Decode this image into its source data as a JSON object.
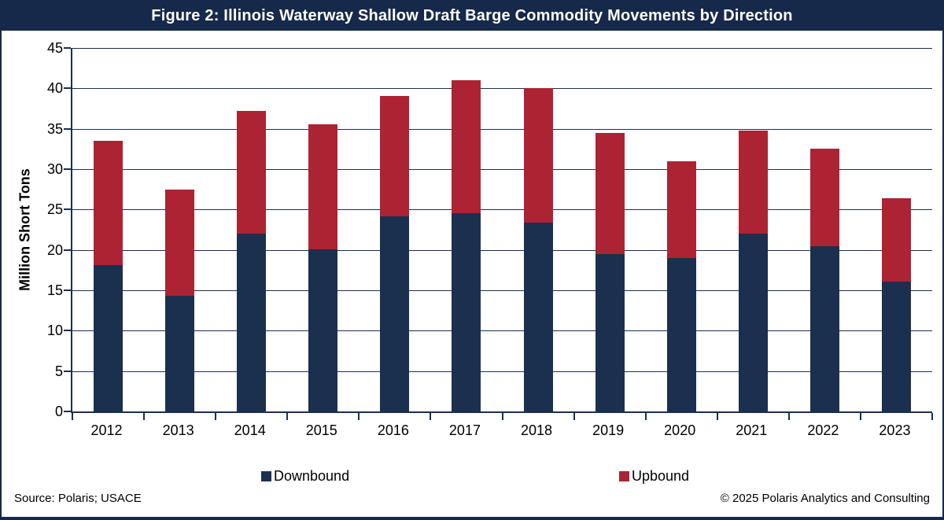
{
  "title": "Figure 2: Illinois Waterway Shallow Draft Barge Commodity Movements by Direction",
  "colors": {
    "downbound": "#1B2F4F",
    "upbound": "#AC2334",
    "title_bar_bg": "#16294A",
    "gridline": "#1B3050"
  },
  "chart_data": {
    "type": "bar",
    "stacked": true,
    "title": "Figure 2: Illinois Waterway Shallow Draft Barge Commodity Movements by Direction",
    "categories": [
      "2012",
      "2013",
      "2014",
      "2015",
      "2016",
      "2017",
      "2018",
      "2019",
      "2020",
      "2021",
      "2022",
      "2023"
    ],
    "series": [
      {
        "name": "Downbound",
        "color": "#1B2F4F",
        "values": [
          18.1,
          14.3,
          22.0,
          20.1,
          24.2,
          24.5,
          23.4,
          19.5,
          19.0,
          22.0,
          20.5,
          16.1
        ]
      },
      {
        "name": "Upbound",
        "color": "#AC2334",
        "values": [
          15.4,
          13.2,
          15.2,
          15.5,
          14.9,
          16.5,
          16.6,
          15.0,
          12.0,
          12.8,
          12.0,
          10.3
        ]
      }
    ],
    "totals": [
      33.5,
      27.5,
      37.2,
      35.6,
      39.1,
      41.0,
      40.0,
      34.5,
      31.0,
      34.8,
      32.5,
      26.4
    ],
    "xlabel": "",
    "ylabel": "Million Short Tons",
    "ylim": [
      0,
      45
    ],
    "ytick_step": 5,
    "yticks": [
      "0",
      "5",
      "10",
      "15",
      "20",
      "25",
      "30",
      "35",
      "40",
      "45"
    ],
    "grid": true,
    "legend_position": "bottom"
  },
  "legend": {
    "downbound": "Downbound",
    "upbound": "Upbound"
  },
  "footer": {
    "source": "Source: Polaris; USACE",
    "copyright": "© 2025 Polaris Analytics and Consulting"
  }
}
